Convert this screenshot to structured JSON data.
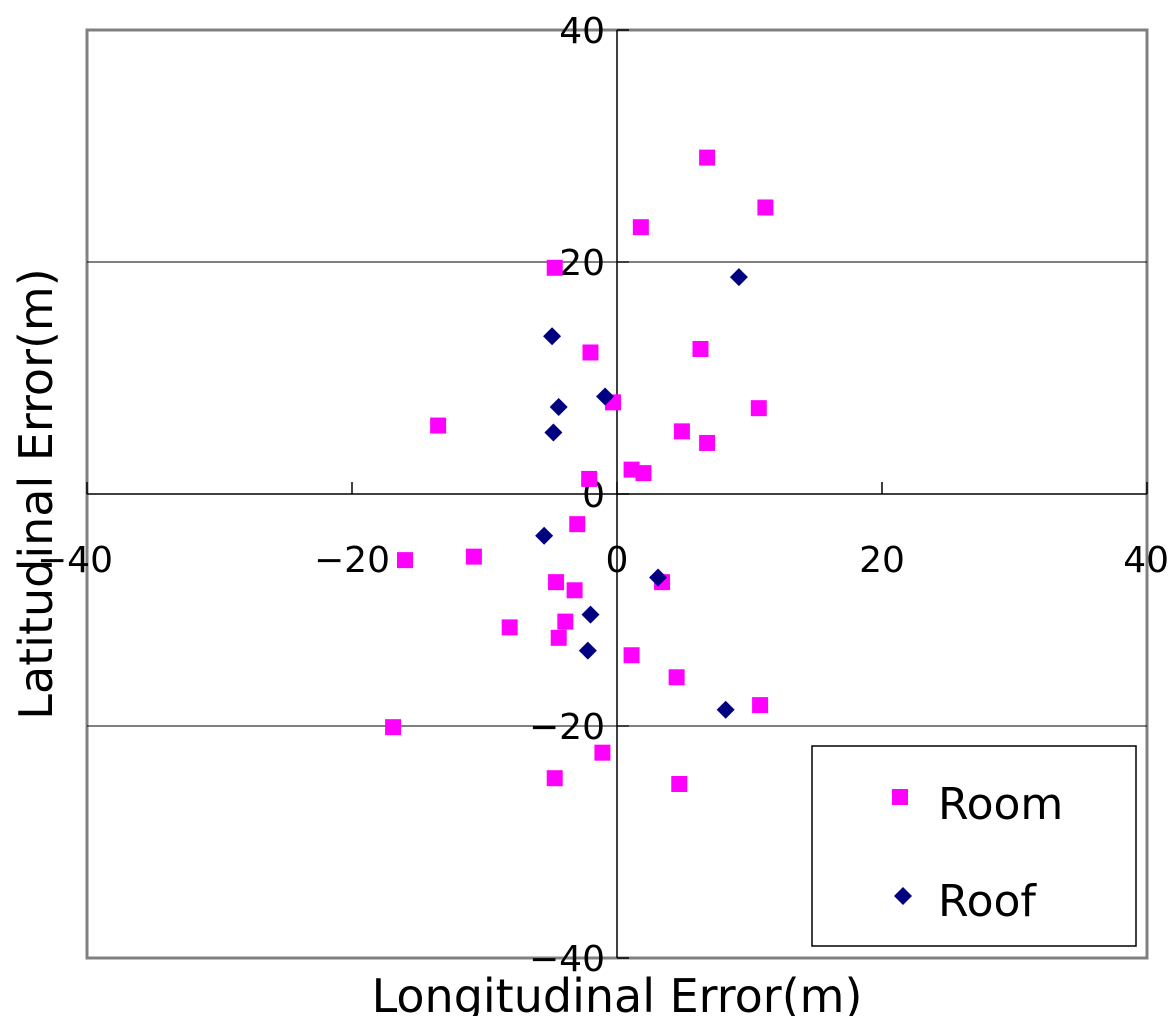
{
  "chart_data": {
    "type": "scatter",
    "title": "",
    "xlabel": "Longitudinal Error(m)",
    "ylabel": "Latitudinal Error(m)",
    "xlim": [
      -40,
      40
    ],
    "ylim": [
      -40,
      40
    ],
    "xticks": [
      -40,
      -20,
      0,
      20,
      40
    ],
    "yticks": [
      -40,
      -20,
      0,
      20,
      40
    ],
    "grid": "horizontal",
    "legend_position": "bottom-right",
    "series": [
      {
        "name": "Room",
        "marker": "square",
        "color": "#ff00ff",
        "points": [
          [
            6.8,
            29
          ],
          [
            11.2,
            24.7
          ],
          [
            1.8,
            23
          ],
          [
            -4.7,
            19.5
          ],
          [
            -2,
            12.2
          ],
          [
            6.3,
            12.5
          ],
          [
            10.7,
            7.4
          ],
          [
            -0.3,
            7.9
          ],
          [
            -13.5,
            5.9
          ],
          [
            4.9,
            5.4
          ],
          [
            6.8,
            4.4
          ],
          [
            1.1,
            2.1
          ],
          [
            2,
            1.8
          ],
          [
            -2.1,
            1.3
          ],
          [
            -3,
            -2.6
          ],
          [
            -16,
            -5.7
          ],
          [
            -10.8,
            -5.4
          ],
          [
            -4.6,
            -7.6
          ],
          [
            -3.2,
            -8.3
          ],
          [
            3.4,
            -7.6
          ],
          [
            -8.1,
            -11.5
          ],
          [
            -3.9,
            -11
          ],
          [
            -4.4,
            -12.4
          ],
          [
            1.1,
            -13.9
          ],
          [
            4.5,
            -15.8
          ],
          [
            10.8,
            -18.2
          ],
          [
            -16.9,
            -20.1
          ],
          [
            -1.1,
            -22.3
          ],
          [
            -4.7,
            -24.5
          ],
          [
            4.7,
            -25
          ]
        ]
      },
      {
        "name": "Roof",
        "marker": "diamond",
        "color": "#000080",
        "points": [
          [
            9.2,
            18.7
          ],
          [
            -4.9,
            13.6
          ],
          [
            -0.9,
            8.4
          ],
          [
            -4.4,
            7.5
          ],
          [
            -4.8,
            5.3
          ],
          [
            -5.5,
            -3.6
          ],
          [
            3.1,
            -7.2
          ],
          [
            -2,
            -10.4
          ],
          [
            -2.2,
            -13.5
          ],
          [
            8.2,
            -18.6
          ]
        ]
      }
    ]
  }
}
